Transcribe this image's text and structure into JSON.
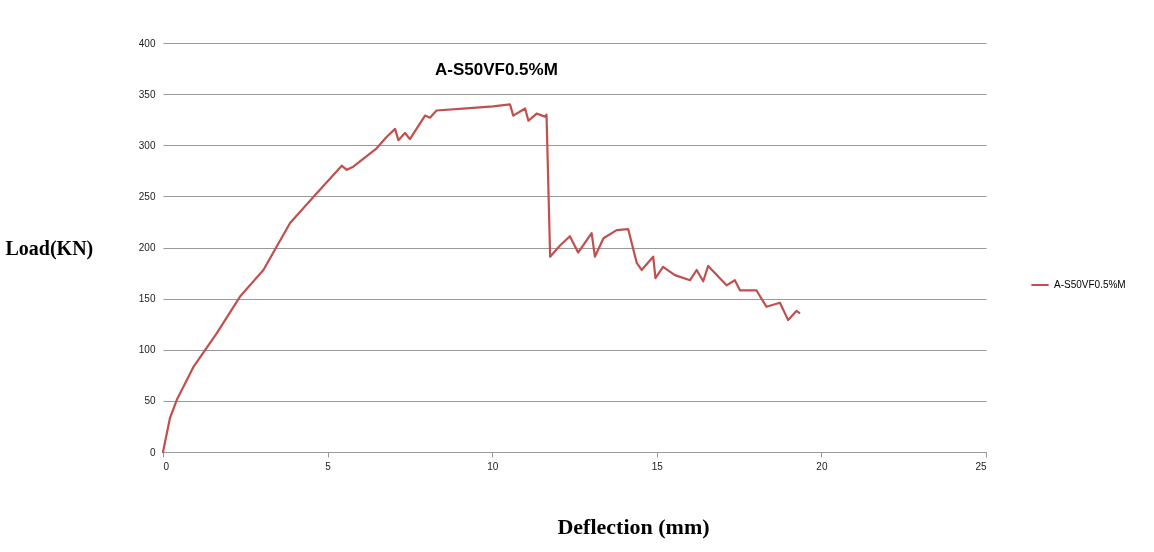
{
  "chart_data": {
    "type": "line",
    "title": "A-S50VF0.5%M",
    "xlabel": "Deflection (mm)",
    "ylabel": "Load(KN)",
    "x": [
      0,
      0.21,
      0.42,
      0.92,
      1.63,
      2.34,
      3.05,
      3.86,
      4.67,
      5.43,
      5.58,
      5.78,
      6.49,
      6.79,
      7.05,
      7.15,
      7.35,
      7.5,
      7.96,
      8.11,
      8.31,
      9.22,
      10.03,
      10.54,
      10.64,
      11.0,
      11.1,
      11.35,
      11.6,
      11.65,
      11.76,
      12.06,
      12.36,
      12.61,
      13.02,
      13.12,
      13.38,
      13.78,
      14.13,
      14.39,
      14.54,
      14.89,
      14.96,
      15.19,
      15.55,
      16.01,
      16.21,
      16.41,
      16.56,
      17.12,
      17.37,
      17.53,
      18.03,
      18.33,
      18.74,
      18.99,
      19.24,
      19.33
    ],
    "series": [
      {
        "name": "A-S50VF0.5%M",
        "color": "#c0504d",
        "values": [
          0,
          33,
          51,
          83,
          116,
          152,
          178,
          224,
          253,
          280,
          276,
          279,
          297,
          308,
          316,
          305,
          312,
          306,
          329,
          327,
          334,
          336,
          338,
          340,
          329,
          336,
          324,
          331,
          328,
          330,
          191,
          202,
          211,
          195,
          214,
          191,
          209,
          217,
          218,
          185,
          178,
          191,
          170,
          181,
          173,
          168,
          178,
          167,
          182,
          163,
          168,
          158,
          158,
          142,
          146,
          129,
          138,
          136
        ]
      }
    ],
    "xlim": [
      0,
      25
    ],
    "xticks": [
      0,
      5,
      10,
      15,
      20,
      25
    ],
    "ylim": [
      0,
      400
    ],
    "yticks": [
      0,
      50,
      100,
      150,
      200,
      250,
      300,
      350,
      400
    ],
    "grid": "y",
    "legend": "right",
    "marker": "none",
    "line_style": "solid"
  }
}
